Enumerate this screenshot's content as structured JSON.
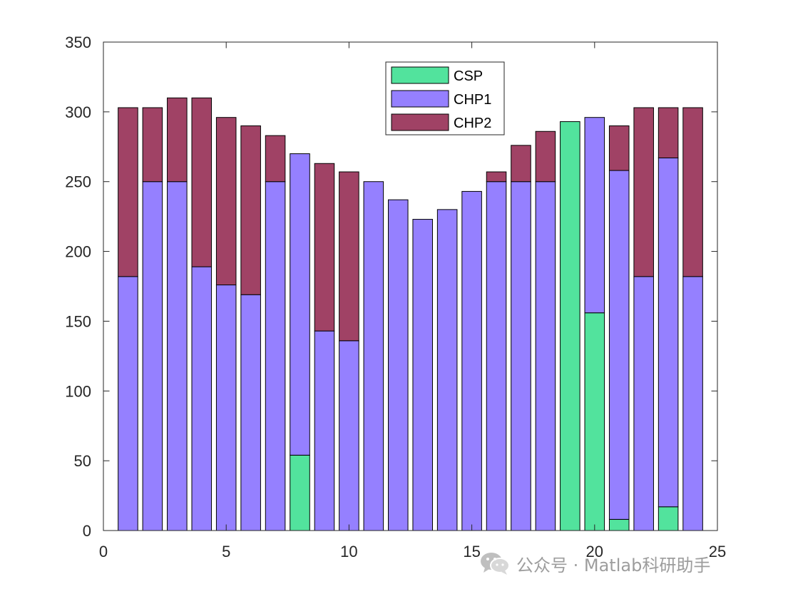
{
  "chart_data": {
    "type": "bar",
    "stacked": true,
    "x": [
      1,
      2,
      3,
      4,
      5,
      6,
      7,
      8,
      9,
      10,
      11,
      12,
      13,
      14,
      15,
      16,
      17,
      18,
      19,
      20,
      21,
      22,
      23,
      24
    ],
    "series": [
      {
        "name": "CSP",
        "color": "#52e39d",
        "values": [
          0,
          0,
          0,
          0,
          0,
          0,
          0,
          54,
          0,
          0,
          0,
          0,
          0,
          0,
          0,
          0,
          0,
          0,
          293,
          156,
          8,
          0,
          17,
          0
        ]
      },
      {
        "name": "CHP1",
        "color": "#9580ff",
        "values": [
          182,
          250,
          250,
          189,
          176,
          169,
          250,
          216,
          143,
          136,
          250,
          237,
          223,
          230,
          243,
          250,
          250,
          250,
          0,
          140,
          250,
          182,
          250,
          182
        ]
      },
      {
        "name": "CHP2",
        "color": "#a04265",
        "values": [
          121,
          53,
          60,
          121,
          120,
          121,
          33,
          0,
          120,
          121,
          0,
          0,
          0,
          0,
          0,
          7,
          26,
          36,
          0,
          0,
          32,
          121,
          36,
          121
        ]
      }
    ],
    "xlim": [
      0,
      25
    ],
    "ylim": [
      0,
      350
    ],
    "xticks": [
      "0",
      "5",
      "10",
      "15",
      "20",
      "25"
    ],
    "yticks": [
      "0",
      "50",
      "100",
      "150",
      "200",
      "250",
      "300",
      "350"
    ],
    "title": "",
    "xlabel": "",
    "ylabel": "",
    "legend_position": "top-center",
    "grid": false
  },
  "watermark": {
    "text": "公众号 · Matlab科研助手",
    "icon": "wechat-icon"
  }
}
